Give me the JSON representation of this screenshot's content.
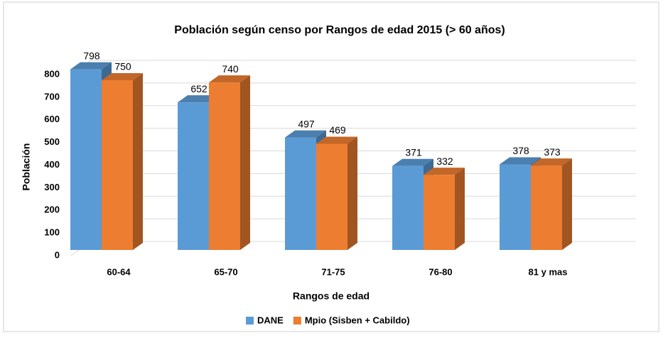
{
  "chart_data": {
    "type": "bar3d",
    "title": "Población según censo por Rangos de edad 2015 (> 60 años)",
    "x_label": "Rangos de edad",
    "y_label": "Población",
    "categories": [
      "60-64",
      "65-70",
      "71-75",
      "76-80",
      "81 y mas"
    ],
    "series": [
      {
        "name": "DANE",
        "color": "#5b9bd5",
        "values": [
          798,
          652,
          497,
          371,
          378
        ]
      },
      {
        "name": "Mpio (Sisben + Cabildo)",
        "color": "#ed7d31",
        "values": [
          750,
          740,
          469,
          332,
          373
        ]
      }
    ],
    "ylim": [
      0,
      800
    ],
    "yticks": [
      0,
      100,
      200,
      300,
      400,
      500,
      600,
      700,
      800
    ],
    "grid": true,
    "legend": "bottom"
  }
}
